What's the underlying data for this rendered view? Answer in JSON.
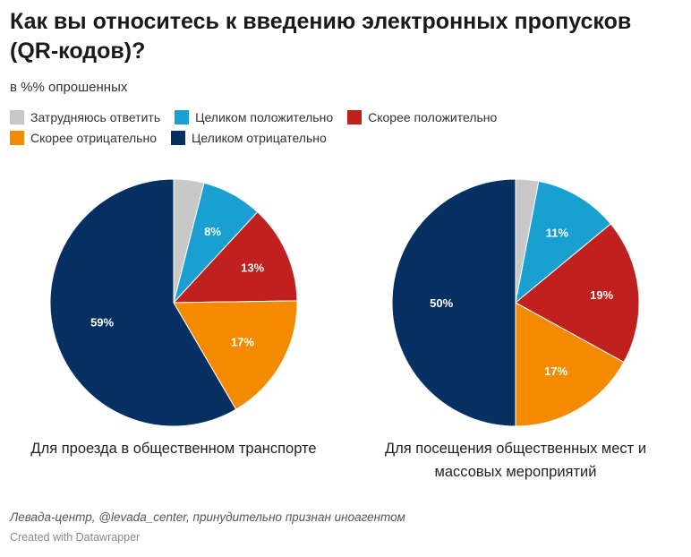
{
  "title": "Как вы относитесь к введению электронных пропусков (QR-кодов)?",
  "subtitle": "в %% опрошенных",
  "legend": [
    {
      "label": "Затрудняюсь ответить",
      "color": "#c8c8c8"
    },
    {
      "label": "Целиком положительно",
      "color": "#1aa0d0"
    },
    {
      "label": "Скорее положительно",
      "color": "#c0201e"
    },
    {
      "label": "Скорее отрицательно",
      "color": "#f48a00"
    },
    {
      "label": "Целиком отрицательно",
      "color": "#063061"
    }
  ],
  "chart_data": [
    {
      "type": "pie",
      "title": "Для проезда в общественном транспорте",
      "categories": [
        "Затрудняюсь ответить",
        "Целиком положительно",
        "Скорее положительно",
        "Скорее отрицательно",
        "Целиком отрицательно"
      ],
      "values": [
        4,
        8,
        13,
        17,
        59
      ],
      "data_labels": [
        "",
        "8%",
        "13%",
        "17%",
        "59%"
      ]
    },
    {
      "type": "pie",
      "title": "Для посещения общественных мест и массовых мероприятий",
      "categories": [
        "Затрудняюсь ответить",
        "Целиком положительно",
        "Скорее положительно",
        "Скорее отрицательно",
        "Целиком отрицательно"
      ],
      "values": [
        3,
        11,
        19,
        17,
        50
      ],
      "data_labels": [
        "",
        "11%",
        "19%",
        "17%",
        "50%"
      ]
    }
  ],
  "source": "Левада-центр, @levada_center, принудительно признан иноагентом",
  "credit": "Created with Datawrapper"
}
